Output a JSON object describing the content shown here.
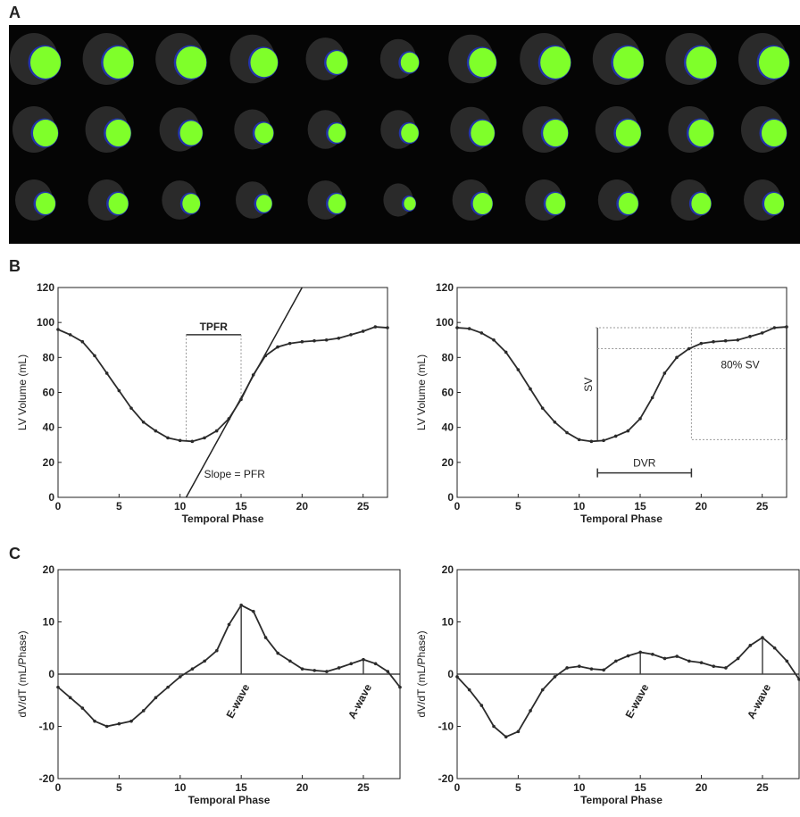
{
  "panels": [
    "A",
    "B",
    "C"
  ],
  "chart_data": [
    {
      "type": "line",
      "xlabel": "Temporal Phase",
      "ylabel": "LV Volume (mL)",
      "x": [
        0,
        1,
        2,
        3,
        4,
        5,
        6,
        7,
        8,
        9,
        10,
        11,
        12,
        13,
        14,
        15,
        16,
        17,
        18,
        19,
        20,
        21,
        22,
        23,
        24,
        25,
        26,
        27
      ],
      "series": [
        {
          "color": "#2b2b2b",
          "values": [
            96,
            93,
            89,
            81,
            71,
            61,
            51,
            43,
            38,
            34,
            32.5,
            32,
            34,
            38,
            45,
            56,
            70,
            81,
            86,
            88,
            89,
            89.5,
            90,
            91,
            93,
            95,
            97.5,
            97
          ]
        }
      ],
      "xlim": [
        0,
        27
      ],
      "ylim": [
        0,
        120
      ],
      "xticks": [
        0,
        5,
        10,
        15,
        20,
        25
      ],
      "yticks": [
        0,
        20,
        40,
        60,
        80,
        100,
        120
      ],
      "annotations": [
        {
          "kind": "bracket",
          "text": "TPFR",
          "x": [
            10.5,
            15
          ],
          "y": 93
        },
        {
          "kind": "line",
          "text": "Slope = PFR",
          "x": [
            10.5,
            20
          ],
          "y": [
            0,
            120
          ]
        }
      ]
    },
    {
      "type": "line",
      "xlabel": "Temporal Phase",
      "ylabel": "LV Volume (mL)",
      "x": [
        0,
        1,
        2,
        3,
        4,
        5,
        6,
        7,
        8,
        9,
        10,
        11,
        12,
        13,
        14,
        15,
        16,
        17,
        18,
        19,
        20,
        21,
        22,
        23,
        24,
        25,
        26,
        27
      ],
      "series": [
        {
          "color": "#2b2b2b",
          "values": [
            97,
            96.5,
            94,
            90,
            83,
            73,
            62,
            51,
            43,
            37,
            33,
            32,
            32.5,
            35,
            38,
            45,
            57,
            71,
            80,
            85,
            88,
            89,
            89.5,
            90,
            92,
            94,
            97,
            97.5
          ]
        }
      ],
      "xlim": [
        0,
        27
      ],
      "ylim": [
        0,
        120
      ],
      "xticks": [
        0,
        5,
        10,
        15,
        20,
        25
      ],
      "yticks": [
        0,
        20,
        40,
        60,
        80,
        100,
        120
      ],
      "annotations": [
        {
          "kind": "vline",
          "text": "SV",
          "x": 11.5,
          "y": [
            32,
            97
          ]
        },
        {
          "kind": "box",
          "x": [
            19.2,
            27
          ],
          "y": [
            33,
            97
          ]
        },
        {
          "kind": "hline",
          "text": "80% SV",
          "x": [
            11.5,
            27
          ],
          "y": 85
        },
        {
          "kind": "bracket",
          "text": "DVR",
          "x": [
            11.5,
            19.2
          ],
          "y": 14
        }
      ]
    },
    {
      "type": "line",
      "xlabel": "Temporal Phase",
      "ylabel": "dV/dT (mL/Phase)",
      "x": [
        0,
        1,
        2,
        3,
        4,
        5,
        6,
        7,
        8,
        9,
        10,
        11,
        12,
        13,
        14,
        15,
        16,
        17,
        18,
        19,
        20,
        21,
        22,
        23,
        24,
        25,
        26,
        27,
        28
      ],
      "series": [
        {
          "color": "#2b2b2b",
          "values": [
            -2.5,
            -4.5,
            -6.5,
            -9,
            -10,
            -9.5,
            -9,
            -7,
            -4.5,
            -2.5,
            -0.5,
            1,
            2.5,
            4.5,
            9.5,
            13.2,
            12,
            7,
            4,
            2.5,
            1,
            0.7,
            0.5,
            1.2,
            2,
            2.8,
            2,
            0.5,
            -2.5
          ]
        }
      ],
      "xlim": [
        0,
        28
      ],
      "ylim": [
        -20,
        20
      ],
      "xticks": [
        0,
        5,
        10,
        15,
        20,
        25
      ],
      "yticks": [
        -20,
        -10,
        0,
        10,
        20
      ],
      "zero_line": true,
      "annotations": [
        {
          "kind": "stem",
          "text": "E-wave",
          "x": 15
        },
        {
          "kind": "stem",
          "text": "A-wave",
          "x": 25
        }
      ]
    },
    {
      "type": "line",
      "xlabel": "Temporal Phase",
      "ylabel": "dV/dT (mL/Phase)",
      "x": [
        0,
        1,
        2,
        3,
        4,
        5,
        6,
        7,
        8,
        9,
        10,
        11,
        12,
        13,
        14,
        15,
        16,
        17,
        18,
        19,
        20,
        21,
        22,
        23,
        24,
        25,
        26,
        27,
        28
      ],
      "series": [
        {
          "color": "#2b2b2b",
          "values": [
            -0.5,
            -3,
            -6,
            -10,
            -12,
            -11,
            -7,
            -3,
            -0.5,
            1.2,
            1.5,
            1,
            0.8,
            2.5,
            3.5,
            4.2,
            3.8,
            3,
            3.4,
            2.5,
            2.2,
            1.5,
            1.2,
            3,
            5.5,
            7,
            5,
            2.5,
            -1
          ]
        }
      ],
      "xlim": [
        0,
        28
      ],
      "ylim": [
        -20,
        20
      ],
      "xticks": [
        0,
        5,
        10,
        15,
        20,
        25
      ],
      "yticks": [
        -20,
        -10,
        0,
        10,
        20
      ],
      "zero_line": true,
      "annotations": [
        {
          "kind": "stem",
          "text": "E-wave",
          "x": 15
        },
        {
          "kind": "stem",
          "text": "A-wave",
          "x": 25
        }
      ]
    }
  ]
}
